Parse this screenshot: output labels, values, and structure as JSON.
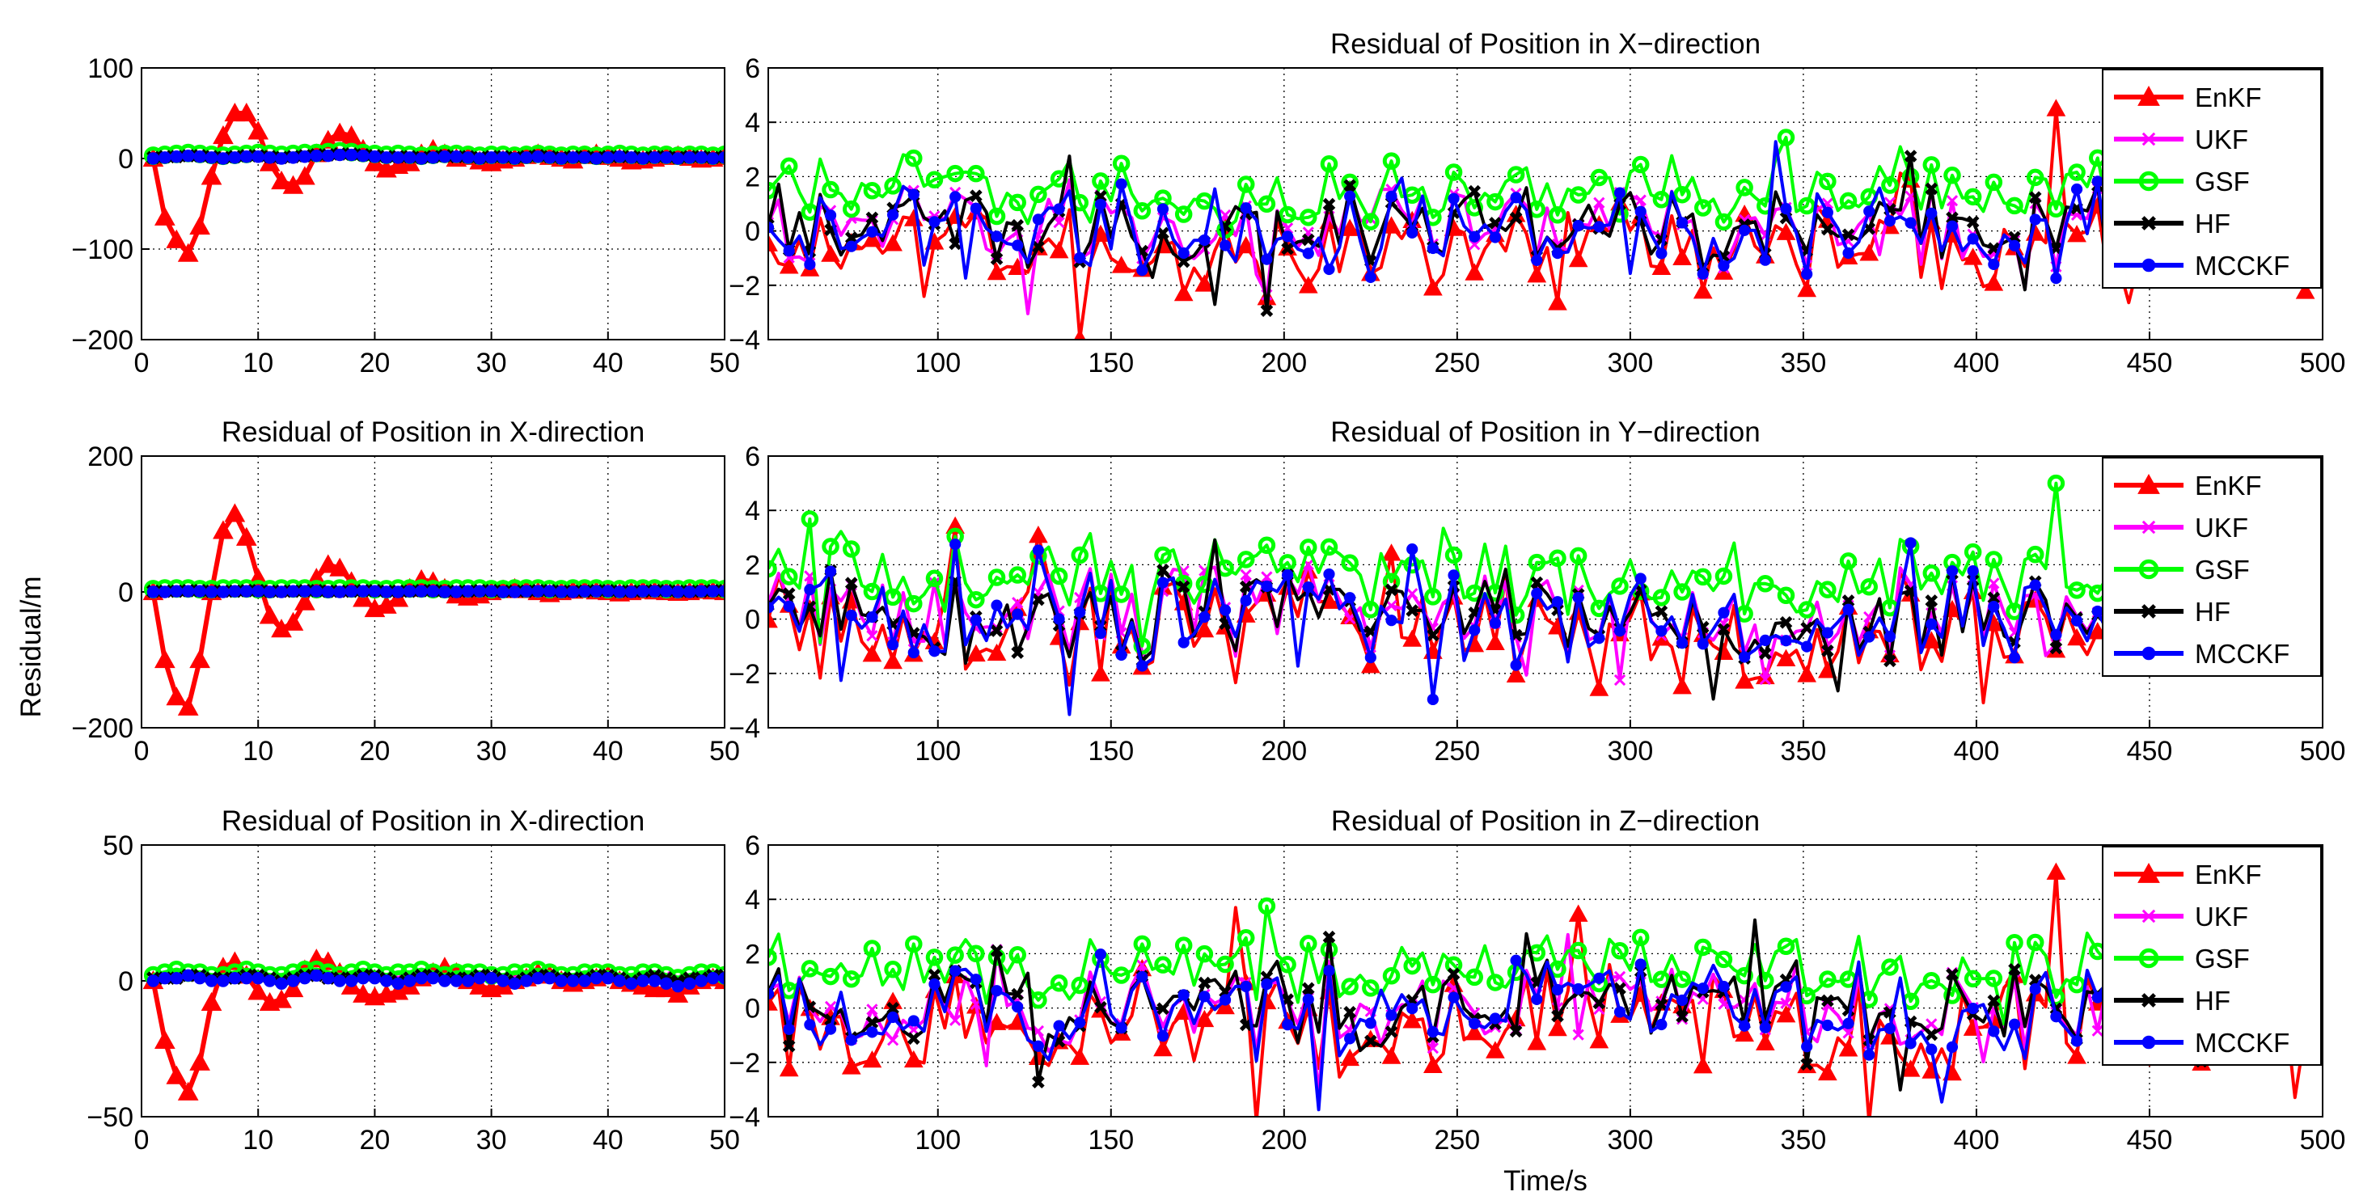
{
  "figure": {
    "ylabel": "Residual/m",
    "xlabel": "Time/s"
  },
  "legend": [
    "EnKF",
    "UKF",
    "GSF",
    "HF",
    "MCCKF"
  ],
  "colors": {
    "EnKF": "#ff0000",
    "UKF": "#ff00ff",
    "GSF": "#00ff00",
    "HF": "#000000",
    "MCCKF": "#0000ff"
  },
  "markers": {
    "EnKF": "triangle",
    "UKF": "x",
    "GSF": "circle-open",
    "HF": "x-bold",
    "MCCKF": "circle-filled"
  },
  "chart_data": [
    {
      "id": "r0-left",
      "type": "line",
      "title": "",
      "xlim": [
        0,
        50
      ],
      "ylim": [
        -200,
        100
      ],
      "xticks": [
        0,
        10,
        20,
        30,
        40,
        50
      ],
      "yticks": [
        -200,
        -100,
        0,
        100
      ],
      "grid": true,
      "x": [
        1,
        2,
        3,
        4,
        5,
        6,
        7,
        8,
        9,
        10,
        11,
        12,
        13,
        14,
        15,
        16,
        17,
        18,
        19,
        20,
        21,
        22,
        23,
        24,
        25,
        26,
        27,
        28,
        29,
        30,
        31,
        32,
        33,
        34,
        35,
        36,
        37,
        38,
        39,
        40,
        41,
        42,
        43,
        44,
        45,
        46,
        47,
        48,
        49,
        50
      ],
      "series": [
        {
          "name": "EnKF",
          "values": [
            0,
            -65,
            -90,
            -105,
            -75,
            -20,
            25,
            50,
            50,
            30,
            -5,
            -25,
            -30,
            -20,
            5,
            20,
            28,
            25,
            10,
            -5,
            -12,
            -8,
            -5,
            5,
            10,
            5,
            0,
            2,
            -3,
            -5,
            -2,
            0,
            3,
            5,
            2,
            0,
            -2,
            3,
            5,
            2,
            0,
            -3,
            -2,
            0,
            2,
            3,
            1,
            -1,
            0,
            2
          ]
        },
        {
          "name": "UKF",
          "values": [
            1,
            2,
            3,
            4,
            3,
            2,
            1,
            2,
            3,
            3,
            2,
            1,
            2,
            3,
            4,
            5,
            6,
            5,
            4,
            3,
            2,
            3,
            2,
            1,
            2,
            3,
            3,
            2,
            1,
            2,
            2,
            1,
            2,
            3,
            2,
            1,
            2,
            2,
            1,
            2,
            3,
            2,
            1,
            2,
            2,
            1,
            2,
            2,
            1,
            2
          ]
        },
        {
          "name": "GSF",
          "values": [
            3,
            4,
            5,
            6,
            5,
            4,
            3,
            4,
            5,
            6,
            5,
            4,
            5,
            6,
            6,
            7,
            8,
            7,
            6,
            5,
            4,
            5,
            4,
            3,
            4,
            5,
            5,
            4,
            3,
            4,
            4,
            3,
            4,
            5,
            4,
            3,
            4,
            4,
            3,
            4,
            5,
            4,
            3,
            4,
            4,
            3,
            4,
            4,
            3,
            4
          ]
        },
        {
          "name": "HF",
          "values": [
            1,
            2,
            2,
            3,
            3,
            2,
            1,
            2,
            3,
            3,
            2,
            1,
            2,
            3,
            4,
            4,
            5,
            5,
            4,
            3,
            2,
            2,
            2,
            1,
            2,
            3,
            2,
            2,
            1,
            2,
            2,
            1,
            2,
            3,
            2,
            1,
            2,
            2,
            1,
            2,
            2,
            2,
            1,
            2,
            2,
            1,
            2,
            2,
            1,
            2
          ]
        },
        {
          "name": "MCCKF",
          "values": [
            0,
            1,
            2,
            3,
            2,
            1,
            0,
            1,
            2,
            2,
            1,
            0,
            1,
            2,
            3,
            3,
            4,
            4,
            3,
            2,
            1,
            1,
            1,
            0,
            1,
            2,
            2,
            1,
            0,
            1,
            1,
            0,
            1,
            2,
            1,
            0,
            1,
            1,
            0,
            1,
            2,
            1,
            0,
            1,
            1,
            0,
            1,
            1,
            0,
            1
          ]
        }
      ]
    },
    {
      "id": "r0-right",
      "type": "line",
      "title": "Residual of Position in X−direction",
      "xlim": [
        51,
        500
      ],
      "ylim": [
        -4,
        6
      ],
      "xticks": [
        100,
        150,
        200,
        250,
        300,
        350,
        400,
        450,
        500
      ],
      "yticks": [
        -4,
        -2,
        0,
        2,
        4,
        6
      ],
      "grid": true,
      "legend_loc": "top-right",
      "x": "51..500 (sampled every 3 s)",
      "series": [
        {
          "name": "EnKF",
          "amplitude": 1.5,
          "offset": -0.6,
          "spike": 4.5
        },
        {
          "name": "UKF",
          "amplitude": 1.3,
          "offset": 0.2
        },
        {
          "name": "GSF",
          "amplitude": 1.0,
          "offset": 1.4
        },
        {
          "name": "HF",
          "amplitude": 1.3,
          "offset": 0.1
        },
        {
          "name": "MCCKF",
          "amplitude": 1.4,
          "offset": 0.0
        }
      ]
    },
    {
      "id": "r1-left",
      "type": "line",
      "title": "Residual of Position in X-direction",
      "xlim": [
        0,
        50
      ],
      "ylim": [
        -200,
        200
      ],
      "xticks": [
        0,
        10,
        20,
        30,
        40,
        50
      ],
      "yticks": [
        -200,
        0,
        200
      ],
      "grid": true,
      "x": [
        1,
        2,
        3,
        4,
        5,
        6,
        7,
        8,
        9,
        10,
        11,
        12,
        13,
        14,
        15,
        16,
        17,
        18,
        19,
        20,
        21,
        22,
        23,
        24,
        25,
        26,
        27,
        28,
        29,
        30,
        31,
        32,
        33,
        34,
        35,
        36,
        37,
        38,
        39,
        40,
        41,
        42,
        43,
        44,
        45,
        46,
        47,
        48,
        49,
        50
      ],
      "series": [
        {
          "name": "EnKF",
          "values": [
            0,
            -100,
            -155,
            -170,
            -100,
            0,
            90,
            115,
            80,
            20,
            -35,
            -55,
            -45,
            -15,
            20,
            40,
            35,
            15,
            -10,
            -25,
            -20,
            -10,
            5,
            18,
            15,
            5,
            -5,
            -8,
            -5,
            0,
            3,
            5,
            3,
            0,
            -3,
            0,
            2,
            3,
            1,
            0,
            -2,
            0,
            2,
            1,
            0,
            -1,
            0,
            2,
            1,
            0
          ]
        },
        {
          "name": "UKF",
          "values": [
            1,
            1,
            2,
            2,
            2,
            1,
            1,
            2,
            2,
            2,
            1,
            1,
            2,
            2,
            2,
            1,
            1,
            2,
            2,
            2,
            1,
            1,
            2,
            2,
            2,
            1,
            1,
            2,
            2,
            2,
            1,
            1,
            2,
            2,
            2,
            1,
            1,
            2,
            2,
            2,
            1,
            1,
            2,
            2,
            2,
            1,
            1,
            2,
            2,
            2
          ]
        },
        {
          "name": "GSF",
          "values": [
            4,
            5,
            5,
            5,
            4,
            4,
            5,
            5,
            5,
            4,
            4,
            5,
            5,
            5,
            4,
            4,
            5,
            5,
            5,
            4,
            4,
            5,
            5,
            5,
            4,
            4,
            5,
            5,
            5,
            4,
            4,
            5,
            5,
            5,
            4,
            4,
            5,
            5,
            5,
            4,
            4,
            5,
            5,
            5,
            4,
            4,
            5,
            5,
            5,
            4
          ]
        },
        {
          "name": "HF",
          "values": [
            1,
            1,
            1,
            2,
            2,
            1,
            1,
            1,
            2,
            2,
            1,
            1,
            1,
            2,
            2,
            1,
            1,
            1,
            2,
            2,
            1,
            1,
            1,
            2,
            2,
            1,
            1,
            1,
            2,
            2,
            1,
            1,
            1,
            2,
            2,
            1,
            1,
            1,
            2,
            2,
            1,
            1,
            1,
            2,
            2,
            1,
            1,
            1,
            2,
            2
          ]
        },
        {
          "name": "MCCKF",
          "values": [
            0,
            0,
            1,
            1,
            1,
            0,
            0,
            1,
            1,
            1,
            0,
            0,
            1,
            1,
            1,
            0,
            0,
            1,
            1,
            1,
            0,
            0,
            1,
            1,
            1,
            0,
            0,
            1,
            1,
            1,
            0,
            0,
            1,
            1,
            1,
            0,
            0,
            1,
            1,
            1,
            0,
            0,
            1,
            1,
            1,
            0,
            0,
            1,
            1,
            1
          ]
        }
      ]
    },
    {
      "id": "r1-right",
      "type": "line",
      "title": "Residual of Position in Y−direction",
      "xlim": [
        51,
        500
      ],
      "ylim": [
        -4,
        6
      ],
      "xticks": [
        100,
        150,
        200,
        250,
        300,
        350,
        400,
        450,
        500
      ],
      "yticks": [
        -4,
        -2,
        0,
        2,
        4,
        6
      ],
      "grid": true,
      "legend_loc": "top-right",
      "x": "51..500 (sampled every 3 s)",
      "series": [
        {
          "name": "EnKF",
          "amplitude": 1.6,
          "offset": -0.4
        },
        {
          "name": "UKF",
          "amplitude": 1.3,
          "offset": 0.3
        },
        {
          "name": "GSF",
          "amplitude": 1.1,
          "offset": 1.6,
          "spike": 5.0
        },
        {
          "name": "HF",
          "amplitude": 1.3,
          "offset": 0.2
        },
        {
          "name": "MCCKF",
          "amplitude": 1.4,
          "offset": 0.1
        }
      ]
    },
    {
      "id": "r2-left",
      "type": "line",
      "title": "Residual of Position in X-direction",
      "xlim": [
        0,
        50
      ],
      "ylim": [
        -50,
        50
      ],
      "xticks": [
        0,
        10,
        20,
        30,
        40,
        50
      ],
      "yticks": [
        -50,
        0,
        50
      ],
      "grid": true,
      "x": [
        1,
        2,
        3,
        4,
        5,
        6,
        7,
        8,
        9,
        10,
        11,
        12,
        13,
        14,
        15,
        16,
        17,
        18,
        19,
        20,
        21,
        22,
        23,
        24,
        25,
        26,
        27,
        28,
        29,
        30,
        31,
        32,
        33,
        34,
        35,
        36,
        37,
        38,
        39,
        40,
        41,
        42,
        43,
        44,
        45,
        46,
        47,
        48,
        49,
        50
      ],
      "series": [
        {
          "name": "EnKF",
          "values": [
            0,
            -22,
            -35,
            -41,
            -30,
            -8,
            5,
            7,
            2,
            -4,
            -8,
            -7,
            -3,
            4,
            8,
            7,
            3,
            -2,
            -5,
            -6,
            -5,
            -4,
            -2,
            1,
            3,
            5,
            3,
            0,
            -2,
            -3,
            -2,
            0,
            1,
            3,
            2,
            0,
            -1,
            0,
            1,
            2,
            0,
            -1,
            -2,
            -3,
            -3,
            -5,
            -2,
            0,
            1,
            0
          ]
        },
        {
          "name": "UKF",
          "values": [
            1,
            1,
            2,
            2,
            2,
            1,
            1,
            1,
            2,
            2,
            1,
            1,
            1,
            2,
            2,
            1,
            1,
            1,
            2,
            2,
            1,
            1,
            1,
            2,
            2,
            1,
            1,
            1,
            2,
            2,
            1,
            1,
            1,
            2,
            2,
            1,
            1,
            1,
            2,
            2,
            1,
            1,
            1,
            2,
            2,
            1,
            1,
            1,
            2,
            2
          ]
        },
        {
          "name": "GSF",
          "values": [
            2,
            3,
            4,
            3,
            3,
            2,
            2,
            3,
            4,
            3,
            2,
            2,
            3,
            4,
            4,
            3,
            2,
            3,
            4,
            3,
            2,
            3,
            3,
            4,
            3,
            2,
            3,
            3,
            3,
            2,
            2,
            3,
            3,
            4,
            3,
            2,
            2,
            3,
            3,
            3,
            2,
            2,
            3,
            3,
            2,
            1,
            2,
            3,
            3,
            2
          ]
        },
        {
          "name": "HF",
          "values": [
            1,
            1,
            1,
            2,
            2,
            1,
            1,
            1,
            2,
            2,
            1,
            0,
            1,
            2,
            2,
            1,
            1,
            1,
            2,
            2,
            1,
            0,
            1,
            2,
            2,
            1,
            1,
            1,
            2,
            2,
            1,
            0,
            1,
            2,
            2,
            1,
            1,
            1,
            2,
            2,
            1,
            0,
            1,
            2,
            1,
            0,
            1,
            1,
            2,
            2
          ]
        },
        {
          "name": "MCCKF",
          "values": [
            0,
            1,
            1,
            2,
            1,
            0,
            0,
            1,
            1,
            1,
            0,
            -1,
            0,
            1,
            2,
            1,
            0,
            0,
            1,
            1,
            0,
            -1,
            0,
            1,
            1,
            0,
            0,
            0,
            1,
            1,
            0,
            -1,
            0,
            1,
            1,
            0,
            0,
            0,
            1,
            1,
            0,
            -1,
            0,
            0,
            -1,
            -2,
            -1,
            0,
            1,
            1
          ]
        }
      ]
    },
    {
      "id": "r2-right",
      "type": "line",
      "title": "Residual of Position in Z−direction",
      "xlim": [
        51,
        500
      ],
      "ylim": [
        -4,
        6
      ],
      "xticks": [
        100,
        150,
        200,
        250,
        300,
        350,
        400,
        450,
        500
      ],
      "yticks": [
        -4,
        -2,
        0,
        2,
        4,
        6
      ],
      "grid": true,
      "legend_loc": "top-right",
      "x": "51..500 (sampled every 3 s)",
      "series": [
        {
          "name": "EnKF",
          "amplitude": 1.6,
          "offset": -0.4,
          "spike": 5.0
        },
        {
          "name": "UKF",
          "amplitude": 1.3,
          "offset": 0.2
        },
        {
          "name": "GSF",
          "amplitude": 1.0,
          "offset": 1.5
        },
        {
          "name": "HF",
          "amplitude": 1.3,
          "offset": 0.1
        },
        {
          "name": "MCCKF",
          "amplitude": 1.4,
          "offset": 0.0
        }
      ]
    }
  ]
}
